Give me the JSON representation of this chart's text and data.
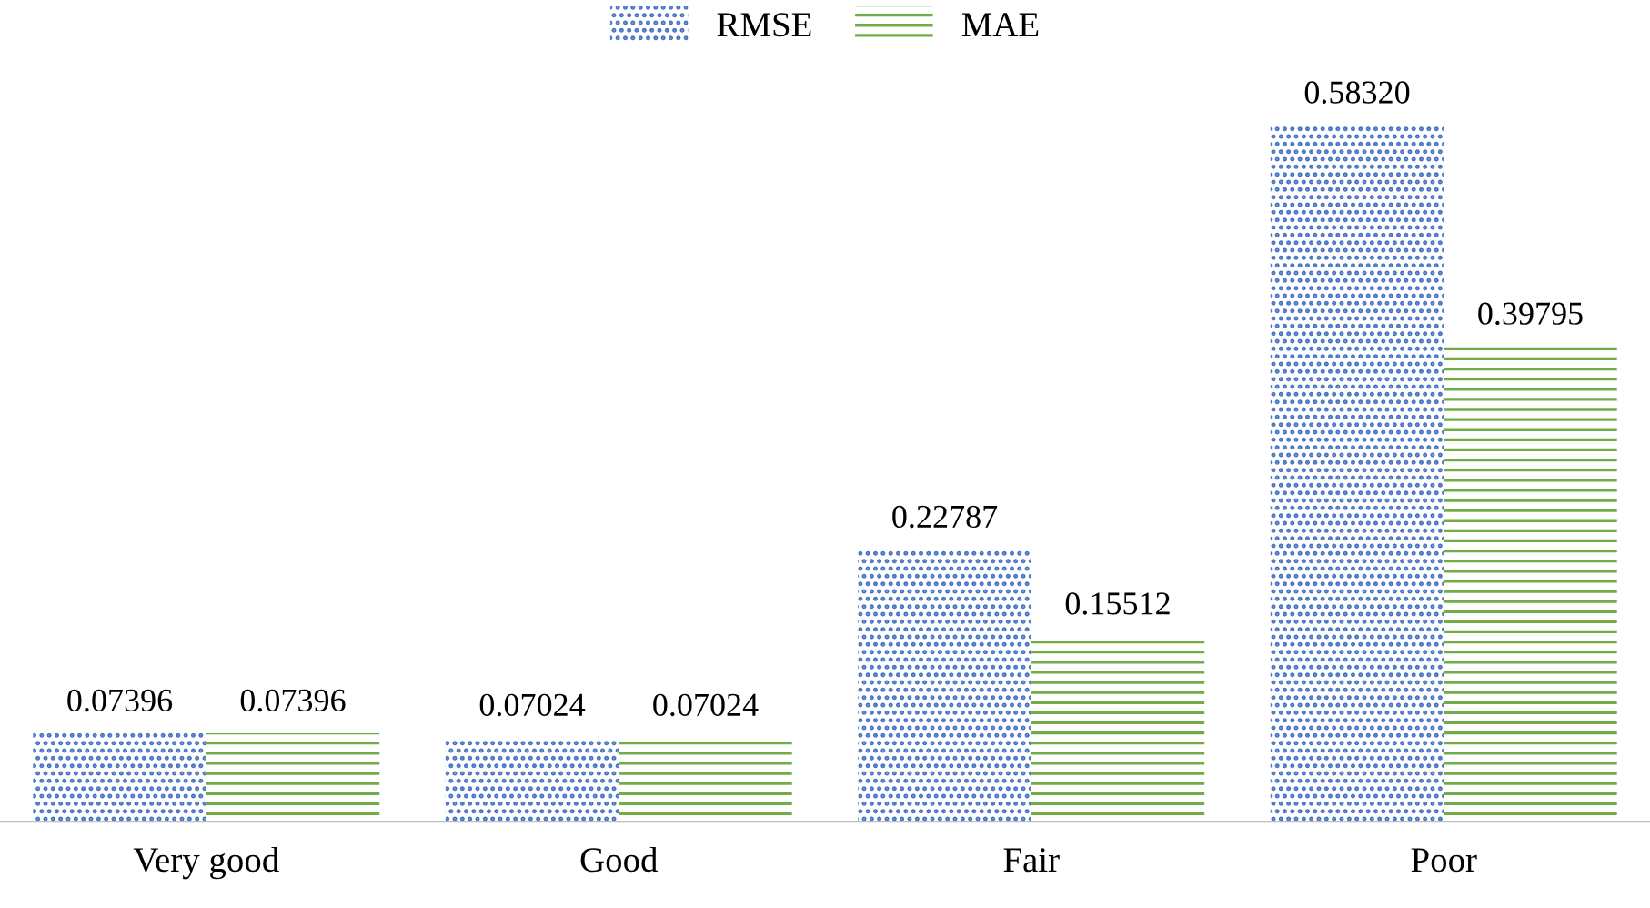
{
  "chart_data": {
    "type": "bar",
    "categories": [
      "Very good",
      "Good",
      "Fair",
      "Poor"
    ],
    "series": [
      {
        "name": "RMSE",
        "color": "#4472c4",
        "values": [
          0.07396,
          0.07024,
          0.22787,
          0.5832
        ],
        "value_labels": [
          "0.07396",
          "0.07024",
          "0.22787",
          "0.58320"
        ]
      },
      {
        "name": "MAE",
        "color": "#70ad47",
        "values": [
          0.07396,
          0.07024,
          0.15512,
          0.39795
        ],
        "value_labels": [
          "0.07396",
          "0.07024",
          "0.15512",
          "0.39795"
        ]
      }
    ],
    "legend": "top",
    "grid": false
  }
}
